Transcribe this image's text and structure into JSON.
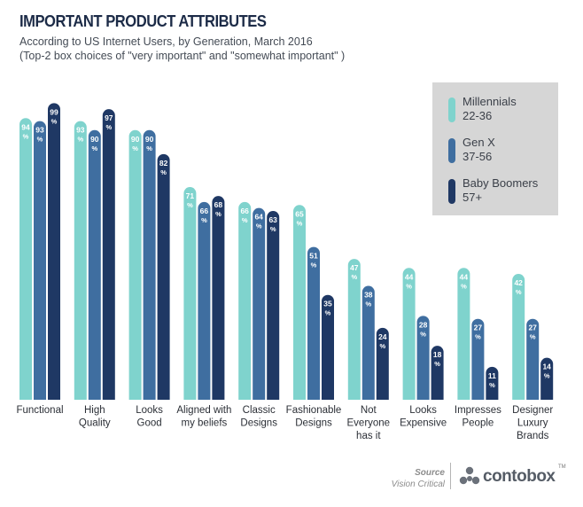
{
  "header": {
    "title": "IMPORTANT PRODUCT ATTRIBUTES",
    "subtitle1": "According to US Internet Users, by Generation, March 2016",
    "subtitle2": "(Top-2 box choices of \"very important\" and \"somewhat important\" )"
  },
  "colors": {
    "Millennials": "#7fd3cd",
    "Gen X": "#3f6ea0",
    "Baby Boomers": "#1f3864"
  },
  "legend": {
    "items": [
      {
        "name": "Millennials",
        "range": "22-36"
      },
      {
        "name": "Gen X",
        "range": "37-56"
      },
      {
        "name": "Baby Boomers",
        "range": "57+"
      }
    ]
  },
  "chart_data": {
    "type": "bar",
    "title": "IMPORTANT PRODUCT ATTRIBUTES",
    "categories": [
      "Functional",
      "High\nQuality",
      "Looks\nGood",
      "Aligned with\nmy beliefs",
      "Classic\nDesigns",
      "Fashionable\nDesigns",
      "Not\nEveryone\nhas it",
      "Looks\nExpensive",
      "Impresses\nPeople",
      "Designer\nLuxury\nBrands"
    ],
    "series": [
      {
        "name": "Millennials",
        "values": [
          94,
          93,
          90,
          71,
          66,
          65,
          47,
          44,
          44,
          42
        ]
      },
      {
        "name": "Gen X",
        "values": [
          93,
          90,
          90,
          66,
          64,
          51,
          38,
          28,
          27,
          27
        ]
      },
      {
        "name": "Baby Boomers",
        "values": [
          99,
          97,
          82,
          68,
          63,
          35,
          24,
          18,
          11,
          14
        ]
      }
    ],
    "unit": "%",
    "ylim": [
      0,
      100
    ],
    "grid": false,
    "legend_position": "top-right"
  },
  "footer": {
    "source_label": "Source",
    "source_name": "Vision Critical",
    "brand": "contobox",
    "brand_tm": "TM"
  }
}
